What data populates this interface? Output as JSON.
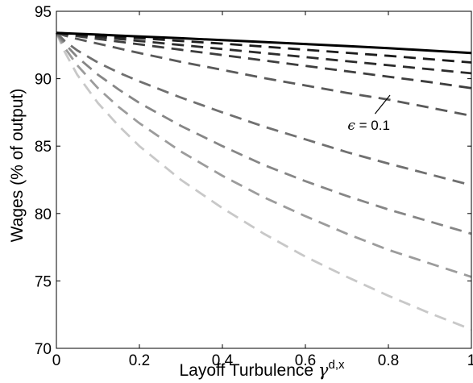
{
  "chart_data": {
    "type": "line",
    "title": "",
    "xlabel": "Layoff Turbulence",
    "xlabel_symbol": "γ",
    "xlabel_superscript": "d,x",
    "ylabel": "Wages (% of output)",
    "xlim": [
      0,
      1
    ],
    "ylim": [
      70,
      95
    ],
    "xticks": [
      0,
      0.2,
      0.4,
      0.6,
      0.8,
      1
    ],
    "xtick_labels": [
      "0",
      "0.2",
      "0.4",
      "0.6",
      "0.8",
      "1"
    ],
    "yticks": [
      70,
      75,
      80,
      85,
      90,
      95
    ],
    "ytick_labels": [
      "70",
      "75",
      "80",
      "85",
      "90",
      "95"
    ],
    "grid": false,
    "legend": "none",
    "x": [
      0,
      0.02,
      0.05,
      0.1,
      0.15,
      0.2,
      0.3,
      0.4,
      0.5,
      0.6,
      0.7,
      0.8,
      0.9,
      1.0
    ],
    "series": [
      {
        "style": "solid",
        "color": "#000000",
        "values": [
          93.4,
          93.37,
          93.33,
          93.27,
          93.2,
          93.13,
          93.0,
          92.86,
          92.72,
          92.57,
          92.42,
          92.26,
          92.09,
          91.9
        ]
      },
      {
        "style": "dashed",
        "color": "#1c1c1c",
        "values": [
          93.4,
          93.36,
          93.3,
          93.2,
          93.1,
          93.0,
          92.8,
          92.6,
          92.38,
          92.15,
          91.92,
          91.7,
          91.45,
          91.2
        ]
      },
      {
        "style": "dashed",
        "color": "#2c2c2c",
        "values": [
          93.4,
          93.35,
          93.25,
          93.1,
          92.95,
          92.8,
          92.5,
          92.2,
          91.9,
          91.6,
          91.3,
          91.0,
          90.7,
          90.4
        ]
      },
      {
        "style": "dashed",
        "color": "#3e3e3e",
        "values": [
          93.4,
          93.3,
          93.15,
          92.95,
          92.75,
          92.55,
          92.15,
          91.75,
          91.35,
          90.95,
          90.55,
          90.15,
          89.75,
          89.3
        ]
      },
      {
        "style": "dashed",
        "color": "#5a5a5a",
        "values": [
          93.4,
          93.2,
          92.95,
          92.6,
          92.25,
          91.9,
          91.25,
          90.65,
          90.05,
          89.5,
          88.95,
          88.45,
          87.85,
          87.25
        ]
      },
      {
        "style": "dashed",
        "color": "#707070",
        "values": [
          93.4,
          92.8,
          92.1,
          91.2,
          90.45,
          89.8,
          88.6,
          87.5,
          86.45,
          85.5,
          84.55,
          83.7,
          82.9,
          82.1
        ]
      },
      {
        "style": "dashed",
        "color": "#868686",
        "values": [
          93.4,
          92.6,
          91.6,
          90.3,
          89.2,
          88.2,
          86.5,
          85.0,
          83.6,
          82.4,
          81.3,
          80.3,
          79.4,
          78.5
        ]
      },
      {
        "style": "dashed",
        "color": "#9c9c9c",
        "values": [
          93.4,
          92.3,
          91.0,
          89.3,
          87.9,
          86.7,
          84.6,
          82.8,
          81.2,
          79.8,
          78.5,
          77.3,
          76.3,
          75.3
        ]
      },
      {
        "style": "dashed",
        "color": "#c8c8c8",
        "values": [
          93.4,
          92.0,
          90.3,
          88.2,
          86.5,
          85.0,
          82.5,
          80.4,
          78.5,
          76.8,
          75.3,
          73.9,
          72.6,
          71.4
        ]
      }
    ],
    "annotations": [
      {
        "symbol": "ϵ",
        "text": " = 0.1",
        "x": 0.76,
        "y": 86.8,
        "arrow_to_x": 0.8,
        "arrow_to_y": 88.9
      }
    ]
  }
}
